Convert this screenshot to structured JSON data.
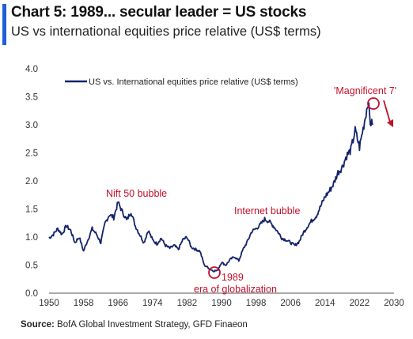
{
  "header": {
    "title": "Chart 5: 1989... secular leader = US stocks",
    "subtitle": "US vs international equities price relative (US$ terms)"
  },
  "footer": {
    "source_label": "Source:",
    "source_text": "BofA Global Investment Strategy, GFD Finaeon"
  },
  "colors": {
    "series": "#13236b",
    "annotation": "#c0102a",
    "accent": "#1f5fd6"
  },
  "chart_data": {
    "type": "line",
    "title": "Chart 5: 1989... secular leader = US stocks",
    "subtitle": "US vs international equities price relative (US$ terms)",
    "xlabel": "",
    "ylabel": "",
    "xlim": [
      1950,
      2030
    ],
    "ylim": [
      0.0,
      4.0
    ],
    "x_ticks": [
      "1950",
      "1958",
      "1966",
      "1974",
      "1982",
      "1990",
      "1998",
      "2006",
      "2014",
      "2022",
      "2030"
    ],
    "y_ticks": [
      "0.0",
      "0.5",
      "1.0",
      "1.5",
      "2.0",
      "2.5",
      "3.0",
      "3.5",
      "4.0"
    ],
    "grid": false,
    "legend_position": "top-left",
    "series": [
      {
        "name": "US vs. International equities price relative (US$ terms)",
        "x": [
          1950,
          1951,
          1952,
          1953,
          1954,
          1955,
          1956,
          1957,
          1958,
          1959,
          1960,
          1961,
          1962,
          1963,
          1964,
          1965,
          1966,
          1967,
          1968,
          1969,
          1970,
          1971,
          1972,
          1973,
          1974,
          1975,
          1976,
          1977,
          1978,
          1979,
          1980,
          1981,
          1982,
          1983,
          1984,
          1985,
          1986,
          1987,
          1988,
          1989,
          1990,
          1991,
          1992,
          1993,
          1994,
          1995,
          1996,
          1997,
          1998,
          1999,
          2000,
          2001,
          2002,
          2003,
          2004,
          2005,
          2006,
          2007,
          2008,
          2009,
          2010,
          2011,
          2012,
          2013,
          2014,
          2015,
          2016,
          2017,
          2018,
          2019,
          2020,
          2021,
          2022,
          2023,
          2024,
          2024.5,
          2025
        ],
        "values": [
          0.98,
          1.05,
          1.15,
          1.05,
          1.2,
          1.12,
          0.9,
          1.0,
          0.75,
          0.95,
          1.15,
          1.05,
          0.9,
          1.25,
          1.4,
          1.35,
          1.62,
          1.45,
          1.3,
          1.45,
          1.2,
          1.05,
          0.9,
          1.12,
          0.95,
          0.88,
          0.98,
          0.85,
          0.8,
          0.85,
          0.78,
          0.95,
          1.0,
          0.82,
          0.78,
          0.75,
          0.5,
          0.45,
          0.4,
          0.4,
          0.55,
          0.5,
          0.6,
          0.65,
          0.58,
          0.78,
          0.92,
          1.1,
          1.15,
          1.22,
          1.32,
          1.28,
          1.2,
          1.1,
          0.98,
          0.95,
          0.9,
          0.85,
          0.92,
          1.08,
          1.2,
          1.3,
          1.38,
          1.55,
          1.72,
          1.82,
          1.95,
          2.15,
          2.25,
          2.45,
          2.55,
          2.9,
          2.6,
          3.0,
          3.42,
          3.05,
          3.0
        ]
      }
    ],
    "annotations": [
      {
        "text": "Nift 50 bubble",
        "x": 1966,
        "y": 1.62
      },
      {
        "text": "Internet bubble",
        "x": 2000,
        "y": 1.32
      },
      {
        "text": "1989",
        "x": 1989,
        "y": 0.4
      },
      {
        "text": "era of globalization",
        "x": 1989,
        "y": 0.4
      },
      {
        "text": "'Magnificent 7'",
        "x": 2024,
        "y": 3.42
      }
    ]
  }
}
